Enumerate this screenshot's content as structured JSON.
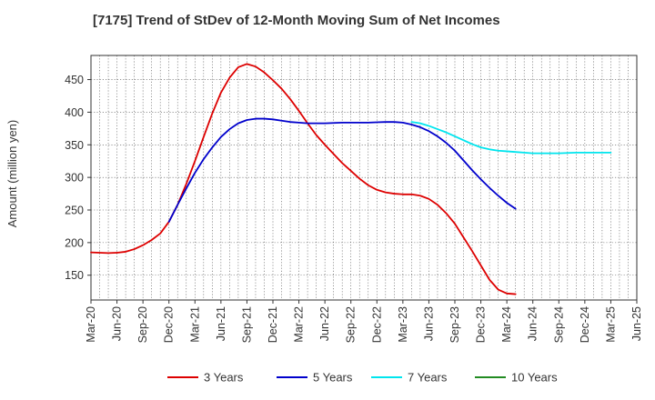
{
  "chart_data": {
    "type": "line",
    "title": "[7175]  Trend of StDev of 12-Month Moving Sum of Net Incomes",
    "ylabel": "Amount (million yen)",
    "xlabel": "",
    "ylim": [
      112,
      487
    ],
    "yticks": [
      150,
      200,
      250,
      300,
      350,
      400,
      450
    ],
    "x_tick_labels": [
      "Mar-20",
      "Jun-20",
      "Sep-20",
      "Dec-20",
      "Mar-21",
      "Jun-21",
      "Sep-21",
      "Dec-21",
      "Mar-22",
      "Jun-22",
      "Sep-22",
      "Dec-22",
      "Mar-23",
      "Jun-23",
      "Sep-23",
      "Dec-23",
      "Mar-24",
      "Jun-24",
      "Sep-24",
      "Dec-24",
      "Mar-25",
      "Jun-25"
    ],
    "grid": true,
    "legend_position": "bottom",
    "series": [
      {
        "name": "3 Years",
        "color": "#dd0000",
        "start_index": 0,
        "values": [
          185,
          184.5,
          184,
          184.5,
          186,
          190,
          196,
          204,
          214,
          232,
          258,
          290,
          325,
          362,
          398,
          430,
          453,
          469,
          474,
          470,
          461,
          449,
          436,
          420,
          402,
          383,
          365,
          350,
          336,
          322,
          310,
          298,
          288,
          281,
          277,
          275,
          274,
          274,
          272,
          267,
          258,
          245,
          229,
          208,
          187,
          165,
          143,
          128,
          122,
          121
        ]
      },
      {
        "name": "5 Years",
        "color": "#0000cc",
        "start_index": 9,
        "values": [
          232,
          258,
          283,
          307,
          328,
          346,
          362,
          374,
          383,
          388,
          390,
          390,
          389,
          387,
          385,
          384,
          383,
          383,
          383,
          383.5,
          384,
          384,
          384,
          384,
          384.5,
          385,
          385,
          384,
          381,
          377,
          371,
          363,
          353,
          341,
          326,
          311,
          297,
          284,
          272,
          261,
          252
        ]
      },
      {
        "name": "7 Years",
        "color": "#00e5ee",
        "start_index": 37,
        "values": [
          385,
          383,
          379,
          374,
          369,
          363,
          357,
          351,
          346,
          343,
          341,
          340,
          339,
          338,
          337,
          337,
          337,
          337,
          337.5,
          338,
          338,
          338,
          338,
          338
        ]
      },
      {
        "name": "10 Years",
        "color": "#228b22",
        "start_index": 0,
        "values": []
      }
    ]
  }
}
